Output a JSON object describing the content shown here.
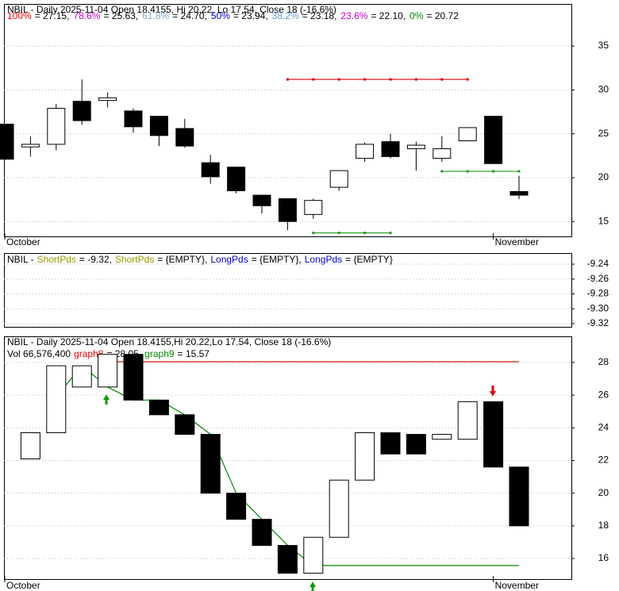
{
  "chart_data": [
    {
      "type": "candlestick",
      "title": "NBIL - Daily 2025-11-04 Open 18.4155, Hi 20.22, Lo 17.54, Close 18 (-16.6%)",
      "fib": [
        {
          "label": "100%",
          "text": "= 27.15,",
          "color": "#ff0000"
        },
        {
          "label": "78.6%",
          "text": "= 25.63,",
          "color": "#cc00cc"
        },
        {
          "label": "61.8%",
          "text": "= 24.70,",
          "color": "#88aacc"
        },
        {
          "label": "50%",
          "text": "= 23.94,",
          "color": "#0000cc"
        },
        {
          "label": "38.2%",
          "text": "= 23.18,",
          "color": "#6699cc"
        },
        {
          "label": "23.6%",
          "text": "= 22.10,",
          "color": "#cc00cc"
        },
        {
          "label": "0%",
          "text": "= 20.72",
          "color": "#008800"
        }
      ],
      "categories": [
        "October",
        null,
        null,
        null,
        null,
        null,
        null,
        null,
        null,
        null,
        null,
        null,
        null,
        null,
        null,
        null,
        null,
        null,
        null,
        "November",
        null
      ],
      "open": [
        26.1,
        23.5,
        23.8,
        28.7,
        28.8,
        27.6,
        27.0,
        25.6,
        21.7,
        21.2,
        18.0,
        17.6,
        15.8,
        18.9,
        22.2,
        24.1,
        23.3,
        22.2,
        24.2,
        27.0,
        18.4155
      ],
      "high": [
        26.1,
        24.7,
        28.4,
        31.2,
        29.7,
        27.9,
        27.0,
        26.7,
        22.6,
        21.2,
        18.0,
        17.6,
        17.6,
        20.8,
        24.0,
        25.0,
        24.1,
        24.7,
        25.7,
        27.0,
        20.22
      ],
      "low": [
        22.0,
        22.4,
        23.1,
        26.0,
        28.0,
        25.1,
        23.6,
        23.4,
        19.3,
        18.2,
        15.9,
        14.0,
        15.3,
        18.5,
        21.8,
        22.2,
        20.8,
        21.8,
        24.2,
        21.6,
        17.54
      ],
      "close": [
        22.1,
        23.8,
        27.9,
        26.5,
        29.1,
        25.8,
        24.8,
        23.6,
        20.1,
        18.5,
        16.8,
        15.0,
        17.4,
        20.8,
        23.8,
        22.4,
        23.7,
        23.3,
        25.7,
        21.6,
        18
      ],
      "up_color": "#ffffff",
      "down_color": "#000000",
      "series": [
        {
          "color": "#dd0000",
          "values": [
            null,
            null,
            null,
            null,
            null,
            null,
            null,
            null,
            null,
            null,
            null,
            31.2,
            31.2,
            31.2,
            31.2,
            31.2,
            31.2,
            31.2,
            31.2,
            null,
            null
          ]
        },
        {
          "color": "#229922",
          "values": [
            null,
            null,
            null,
            null,
            null,
            null,
            null,
            null,
            null,
            null,
            null,
            null,
            null,
            null,
            null,
            null,
            null,
            20.72,
            20.72,
            20.72,
            20.72
          ]
        },
        {
          "color": "#229922",
          "values": [
            null,
            null,
            null,
            null,
            null,
            null,
            null,
            null,
            null,
            null,
            null,
            null,
            13.7,
            13.7,
            13.7,
            13.7,
            null,
            null,
            null,
            null,
            null
          ]
        }
      ],
      "ylim": [
        13.3,
        39.8
      ],
      "yticks": [
        15,
        20,
        25,
        30,
        35
      ],
      "grid": true
    },
    {
      "type": "line",
      "title_parts": [
        {
          "text": "NBIL -",
          "color": "#000000"
        },
        {
          "text": "ShortPds",
          "color": "#999900"
        },
        {
          "text": "= -9.32,",
          "color": "#000000"
        },
        {
          "text": "ShortPds",
          "color": "#999900"
        },
        {
          "text": "= {EMPTY},",
          "color": "#000000"
        },
        {
          "text": "LongPds",
          "color": "#0000cc"
        },
        {
          "text": "= {EMPTY},",
          "color": "#000000"
        },
        {
          "text": "LongPds",
          "color": "#0000cc"
        },
        {
          "text": "= {EMPTY}",
          "color": "#000000"
        }
      ],
      "ylim": [
        -9.3243,
        -9.2261
      ],
      "yticks": [
        -9.24,
        -9.26,
        -9.28,
        {
          "value": -9.3,
          "label": "-9.30"
        },
        -9.32
      ],
      "grid": true
    },
    {
      "type": "candlestick",
      "title": "NBIL - Daily 2025-11-04 Open 18.4155,Hi 20.22,Lo 17.54, Close 18 (-16.6%)",
      "volume_text": "Vol 66,576,400",
      "categories": [
        "October",
        null,
        null,
        null,
        null,
        null,
        null,
        null,
        null,
        null,
        null,
        null,
        null,
        null,
        null,
        null,
        null,
        null,
        null,
        "November",
        null
      ],
      "open": [
        null,
        22.1,
        23.7,
        26.5,
        26.5,
        28.5,
        25.7,
        24.8,
        23.6,
        20.0,
        18.4,
        16.8,
        15.1,
        17.3,
        20.8,
        23.7,
        23.6,
        23.3,
        23.3,
        25.6,
        21.6
      ],
      "close": [
        null,
        23.7,
        27.8,
        27.8,
        28.5,
        25.7,
        24.8,
        23.6,
        20.0,
        18.4,
        16.8,
        15.1,
        17.3,
        20.8,
        23.7,
        22.4,
        22.4,
        23.6,
        25.6,
        21.6,
        18.0
      ],
      "up_color": "#ffffff",
      "down_color": "#000000",
      "series": [
        {
          "name": "graph8",
          "legend_text": "= 28.05,",
          "color": "#dd0000",
          "values": [
            null,
            null,
            null,
            null,
            28.05,
            28.05,
            28.05,
            28.05,
            28.05,
            28.05,
            28.05,
            28.05,
            28.05,
            28.05,
            28.05,
            28.05,
            28.05,
            28.05,
            28.05,
            28.05,
            28.05
          ]
        },
        {
          "name": "graph9",
          "legend_text": "= 15.57",
          "color": "#008800",
          "values": [
            null,
            null,
            25.9,
            27.8,
            26.5,
            25.7,
            25.7,
            24.8,
            23.6,
            20.0,
            18.4,
            16.8,
            15.57,
            15.57,
            15.57,
            15.57,
            15.57,
            15.57,
            15.57,
            15.57,
            15.57
          ]
        }
      ],
      "ylim": [
        14.74,
        29.6
      ],
      "yticks": [
        16,
        18,
        20,
        22,
        24,
        26,
        28
      ],
      "grid": true
    }
  ]
}
